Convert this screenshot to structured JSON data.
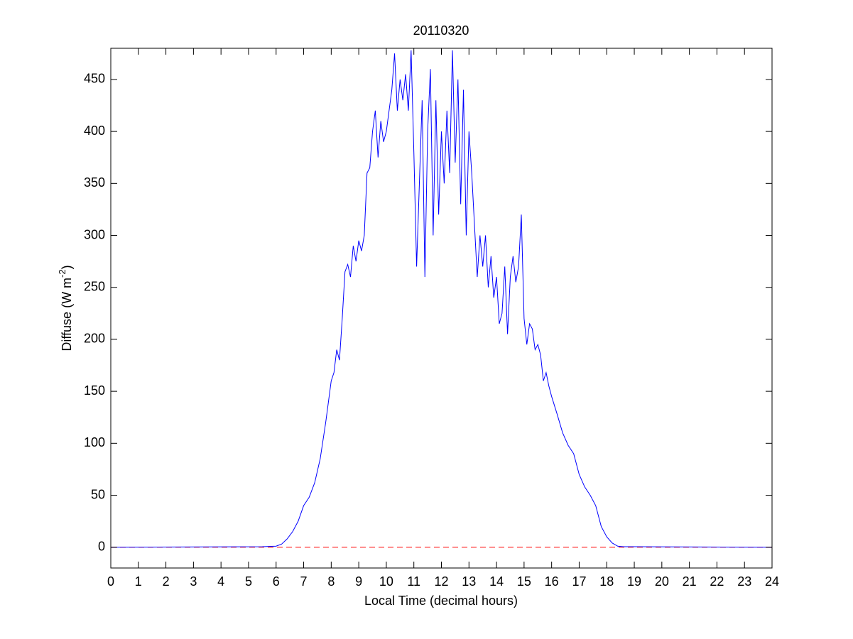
{
  "chart_data": {
    "type": "line",
    "title": "20110320",
    "xlabel": "Local Time (decimal hours)",
    "ylabel": {
      "text": "Diffuse (W m",
      "superscript": "-2",
      "suffix": ")"
    },
    "color": "#0000ff",
    "x": [
      0,
      5.5,
      6.0,
      6.2,
      6.4,
      6.6,
      6.8,
      7.0,
      7.2,
      7.4,
      7.6,
      7.8,
      7.9,
      8.0,
      8.1,
      8.2,
      8.3,
      8.4,
      8.5,
      8.6,
      8.7,
      8.8,
      8.9,
      9.0,
      9.1,
      9.2,
      9.3,
      9.4,
      9.5,
      9.6,
      9.7,
      9.8,
      9.9,
      10.0,
      10.1,
      10.2,
      10.3,
      10.4,
      10.5,
      10.6,
      10.7,
      10.8,
      10.9,
      11.0,
      11.1,
      11.2,
      11.3,
      11.4,
      11.5,
      11.6,
      11.7,
      11.8,
      11.9,
      12.0,
      12.1,
      12.2,
      12.3,
      12.4,
      12.5,
      12.6,
      12.7,
      12.8,
      12.9,
      13.0,
      13.1,
      13.2,
      13.3,
      13.4,
      13.5,
      13.6,
      13.7,
      13.8,
      13.9,
      14.0,
      14.1,
      14.2,
      14.3,
      14.4,
      14.5,
      14.6,
      14.7,
      14.8,
      14.9,
      15.0,
      15.1,
      15.2,
      15.3,
      15.4,
      15.5,
      15.6,
      15.7,
      15.8,
      15.9,
      16.0,
      16.2,
      16.4,
      16.6,
      16.8,
      17.0,
      17.2,
      17.4,
      17.6,
      17.8,
      18.0,
      18.2,
      18.4,
      18.6,
      19,
      24
    ],
    "values": [
      0,
      0.5,
      1,
      3,
      8,
      15,
      25,
      40,
      48,
      62,
      85,
      120,
      140,
      160,
      168,
      190,
      180,
      220,
      265,
      272,
      260,
      290,
      275,
      295,
      285,
      300,
      360,
      365,
      400,
      420,
      375,
      410,
      390,
      400,
      420,
      440,
      475,
      420,
      450,
      430,
      455,
      420,
      478,
      380,
      270,
      350,
      430,
      260,
      400,
      460,
      300,
      430,
      320,
      400,
      350,
      420,
      360,
      478,
      370,
      450,
      330,
      440,
      300,
      400,
      360,
      310,
      260,
      300,
      270,
      300,
      250,
      280,
      240,
      260,
      215,
      225,
      270,
      205,
      260,
      280,
      255,
      270,
      320,
      220,
      195,
      215,
      210,
      190,
      195,
      185,
      160,
      168,
      155,
      145,
      128,
      110,
      98,
      90,
      70,
      58,
      50,
      40,
      20,
      10,
      4,
      1,
      0.5,
      0.5,
      0
    ],
    "reference_line": {
      "value": 0,
      "color": "#ff0000",
      "style": "dashed"
    },
    "xlim": [
      0,
      24
    ],
    "xticks": [
      0,
      1,
      2,
      3,
      4,
      5,
      6,
      7,
      8,
      9,
      10,
      11,
      12,
      13,
      14,
      15,
      16,
      17,
      18,
      19,
      20,
      21,
      22,
      23,
      24
    ],
    "ylim": [
      -20,
      480
    ],
    "yticks": [
      0,
      50,
      100,
      150,
      200,
      250,
      300,
      350,
      400,
      450
    ]
  }
}
